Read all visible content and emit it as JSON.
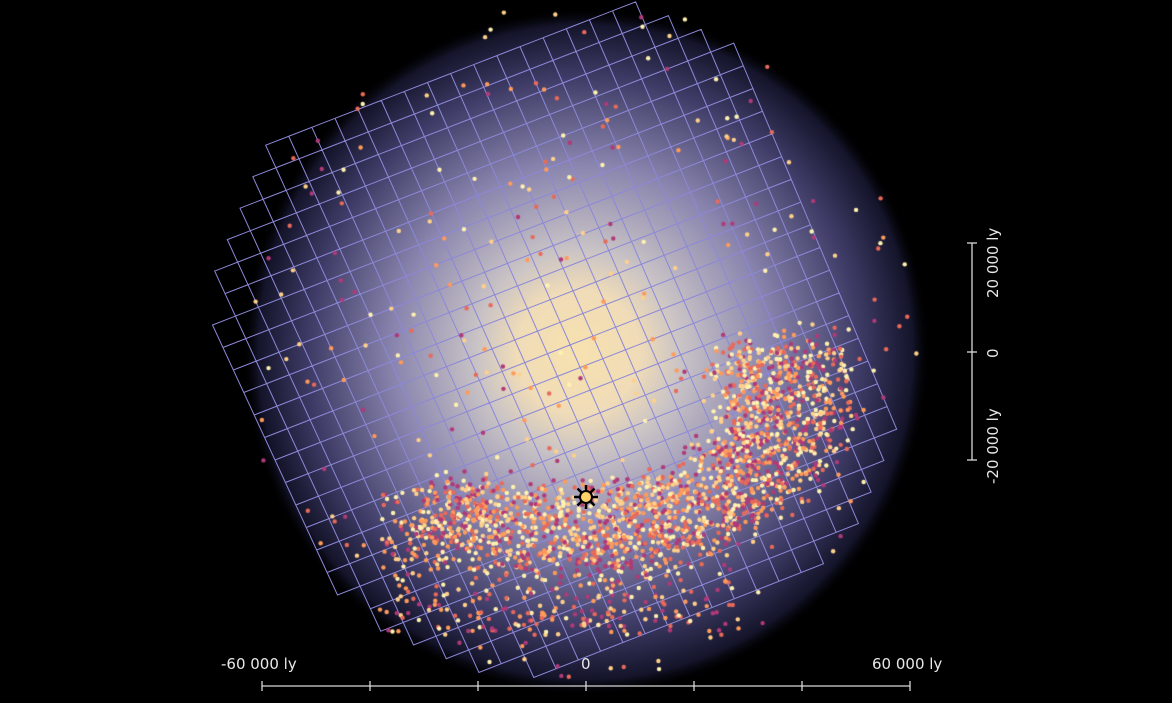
{
  "scale_x": {
    "ticks": [
      "-60 000 ly",
      "0",
      "60 000 ly"
    ]
  },
  "scale_y": {
    "ticks": [
      "20 000 ly",
      "0",
      "-20 000 ly"
    ]
  },
  "colors": {
    "core": "#f6dfae",
    "halo": "#8a86b8",
    "grid": "#8c88d8",
    "star_pale": "#fff2b0",
    "star_orange": "#ff9a5a",
    "star_magenta": "#b03a78",
    "sun": "#ffd36a"
  },
  "icons": {
    "sun_marker": "sun-icon"
  }
}
